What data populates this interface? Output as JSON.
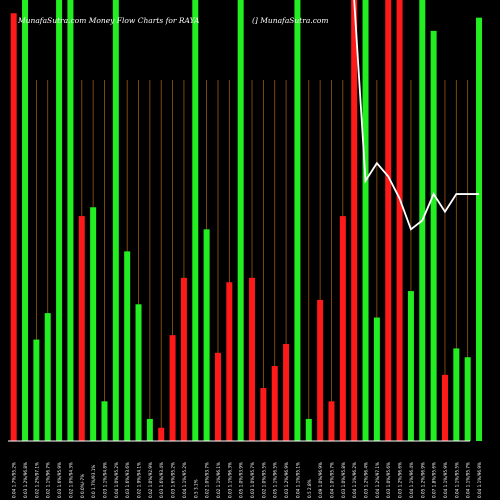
{
  "header": {
    "left": "MunafaSutra.com Money Flow Charts for RAYA",
    "right": "(] MunafaSutra.com"
  },
  "colors": {
    "background": "#000000",
    "up": "#22ee22",
    "down": "#ff1a1a",
    "grid": "#9a5a10",
    "line": "#ffffff",
    "text": "#ffffff",
    "axis": "#ffffff"
  },
  "chart_data": {
    "type": "bar",
    "title": "MunafaSutra.com Money Flow Charts for RAYA",
    "ylim": [
      0,
      100
    ],
    "grid": true,
    "categories": [
      "0.04 1.7%/95.2%",
      "0.03 1.2%/96.8%",
      "0.02 1.2%/97.1%",
      "0.02 1.1%/96.7%",
      "0.03 1.6%/95.9%",
      "0.02 1.0%/94.3%",
      "0 0.0%/-7%",
      "0.0 1.7%/93.1%",
      "0.03 1.1%/94.8%",
      "0.04 1.0%/95.2%",
      "0.03 1.6%/93.6%",
      "0.02 1.9%/94.1%",
      "0.02 1.0%/92.9%",
      "0.03 1.6%/93.4%",
      "0.03 1.6%/95.2%",
      "0.04 1.1%/95.2%",
      "0.5 3.1%",
      "0.02 1.0%/93.7%",
      "0.02 1.1%/96.1%",
      "0.03 1.1%/96.3%",
      "0.05 1.0%/93.9%",
      "0.03 1.0%/95.7%",
      "0.02 1.0%/95.5%",
      "0.05 1.1%/96.5%",
      "0.03 1.2%/96.9%",
      "0.04 1.1%/95.1%",
      "0.5 2.8%",
      "0.09 1.0%/96.9%",
      "0.04 1.0%/95.7%",
      "0.03 1.0%/95.8%",
      "0.04 1.1%/96.2%",
      "0.03 1.2%/96.4%",
      "0.04 1.2%/97.1%",
      "0.03 1.0%/95.6%",
      "0.03 1.2%/96.6%",
      "0.04 1.1%/96.4%",
      "0.05 1.2%/96.9%",
      "0.07 1.8%/95.6%",
      "0.04 1.1%/95.9%",
      "0.04 1.1%/95.5%",
      "0.04 1.1%/95.7%",
      "0.04 1.1%/96.9%"
    ],
    "series": [
      {
        "values": [
          97,
          100,
          23,
          29,
          100,
          100,
          51,
          53,
          9,
          100,
          43,
          31,
          5,
          3,
          24,
          37,
          100,
          48,
          20,
          36,
          100,
          37,
          12,
          17,
          22,
          100,
          5,
          32,
          9,
          51,
          100,
          100,
          28,
          100,
          100,
          34,
          100,
          93,
          15,
          21,
          19,
          96
        ],
        "colors": [
          "down",
          "up",
          "up",
          "up",
          "up",
          "up",
          "down",
          "up",
          "up",
          "up",
          "up",
          "up",
          "up",
          "down",
          "down",
          "down",
          "up",
          "up",
          "down",
          "down",
          "up",
          "down",
          "down",
          "down",
          "down",
          "up",
          "up",
          "down",
          "down",
          "down",
          "down",
          "up",
          "up",
          "down",
          "down",
          "up",
          "up",
          "up",
          "down",
          "up",
          "up",
          "up"
        ]
      },
      {
        "values": [
          null,
          null,
          null,
          null,
          null,
          null,
          null,
          null,
          null,
          null,
          null,
          null,
          null,
          null,
          null,
          null,
          null,
          null,
          null,
          null,
          null,
          null,
          null,
          null,
          null,
          null,
          null,
          null,
          null,
          null,
          100,
          59,
          63,
          60,
          55,
          48,
          50,
          56,
          52,
          56,
          56,
          56
        ],
        "type": "line"
      }
    ]
  }
}
